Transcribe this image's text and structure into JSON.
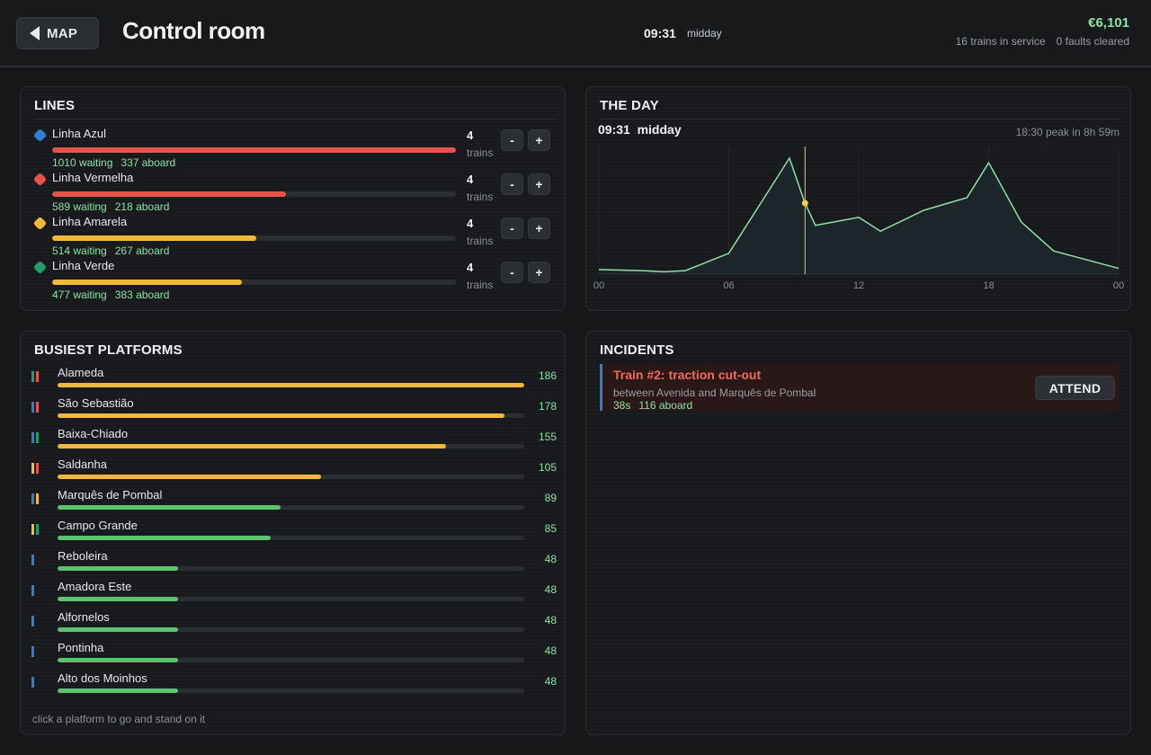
{
  "header": {
    "map_label": "MAP",
    "title": "Control room",
    "clock": "09:31",
    "period": "midday",
    "money": "€6,101",
    "trains_in_service": "16 trains in service",
    "faults_cleared": "0 faults cleared"
  },
  "lines_panel": {
    "title": "LINES",
    "minus_label": "-",
    "plus_label": "+",
    "items": [
      {
        "name": "Linha Azul",
        "color": "#2f7fd1",
        "load": 1.0,
        "bar_color": "#e5534b",
        "waiting": "1010 waiting",
        "aboard": "337 aboard",
        "trains": "4",
        "trains_label": "trains"
      },
      {
        "name": "Linha Vermelha",
        "color": "#e5534b",
        "load": 0.58,
        "bar_color": "#e5534b",
        "waiting": "589 waiting",
        "aboard": "218 aboard",
        "trains": "4",
        "trains_label": "trains"
      },
      {
        "name": "Linha Amarela",
        "color": "#f2b93b",
        "load": 0.505,
        "bar_color": "#f2b93b",
        "waiting": "514 waiting",
        "aboard": "267 aboard",
        "trains": "4",
        "trains_label": "trains"
      },
      {
        "name": "Linha Verde",
        "color": "#1f9d6b",
        "load": 0.47,
        "bar_color": "#f2b93b",
        "waiting": "477 waiting",
        "aboard": "383 aboard",
        "trains": "4",
        "trains_label": "trains"
      }
    ]
  },
  "day_panel": {
    "title": "THE DAY",
    "time": "09:31  midday",
    "peak": "18:30 peak in 8h 59m",
    "now_hour": 9.52
  },
  "chart_data": {
    "type": "area",
    "x": [
      0,
      2,
      3,
      4,
      6,
      8.8,
      9.5,
      10,
      12,
      13,
      15,
      17,
      18,
      19.5,
      21,
      24
    ],
    "y": [
      4,
      3,
      2,
      3,
      18,
      100,
      62,
      42,
      49,
      37,
      55,
      66,
      96,
      45,
      20,
      5
    ],
    "ylim": [
      0,
      110
    ],
    "xlim": [
      0,
      24
    ],
    "xticks": [
      "00",
      "06",
      "12",
      "18",
      "00"
    ],
    "marker_x": 9.52,
    "colors": {
      "line": "#8ee0a4",
      "fill": "#1c262a",
      "marker": "#f2c94c"
    }
  },
  "platforms_panel": {
    "title": "BUSIEST PLATFORMS",
    "hint": "click a platform to go and stand on it",
    "items": [
      {
        "name": "Alameda",
        "count": "186",
        "fill": 1.0,
        "bar_color": "#f2b93b",
        "marks": [
          "#1f9d6b",
          "#e5534b"
        ]
      },
      {
        "name": "São Sebastião",
        "count": "178",
        "fill": 0.957,
        "bar_color": "#f2b93b",
        "marks": [
          "#2f7fd1",
          "#e5534b"
        ]
      },
      {
        "name": "Baixa-Chiado",
        "count": "155",
        "fill": 0.833,
        "bar_color": "#f2b93b",
        "marks": [
          "#2f7fd1",
          "#1f9d6b"
        ]
      },
      {
        "name": "Saldanha",
        "count": "105",
        "fill": 0.565,
        "bar_color": "#f2b93b",
        "marks": [
          "#f2b93b",
          "#e5534b"
        ]
      },
      {
        "name": "Marquês de Pombal",
        "count": "89",
        "fill": 0.478,
        "bar_color": "#5cc46e",
        "marks": [
          "#2f7fd1",
          "#f2b93b"
        ]
      },
      {
        "name": "Campo Grande",
        "count": "85",
        "fill": 0.457,
        "bar_color": "#5cc46e",
        "marks": [
          "#f2b93b",
          "#1f9d6b"
        ]
      },
      {
        "name": "Reboleira",
        "count": "48",
        "fill": 0.258,
        "bar_color": "#5cc46e",
        "marks": [
          "#2f7fd1"
        ]
      },
      {
        "name": "Amadora Este",
        "count": "48",
        "fill": 0.258,
        "bar_color": "#5cc46e",
        "marks": [
          "#2f7fd1"
        ]
      },
      {
        "name": "Alfornelos",
        "count": "48",
        "fill": 0.258,
        "bar_color": "#5cc46e",
        "marks": [
          "#2f7fd1"
        ]
      },
      {
        "name": "Pontinha",
        "count": "48",
        "fill": 0.258,
        "bar_color": "#5cc46e",
        "marks": [
          "#2f7fd1"
        ]
      },
      {
        "name": "Alto dos Moinhos",
        "count": "48",
        "fill": 0.258,
        "bar_color": "#5cc46e",
        "marks": [
          "#2f7fd1"
        ]
      }
    ]
  },
  "incidents_panel": {
    "title": "INCIDENTS",
    "items": [
      {
        "title": "Train #2: traction cut-out",
        "location": "between Avenida and Marquês de Pombal",
        "elapsed": "38s",
        "aboard": "116 aboard",
        "action": "ATTEND"
      }
    ]
  }
}
